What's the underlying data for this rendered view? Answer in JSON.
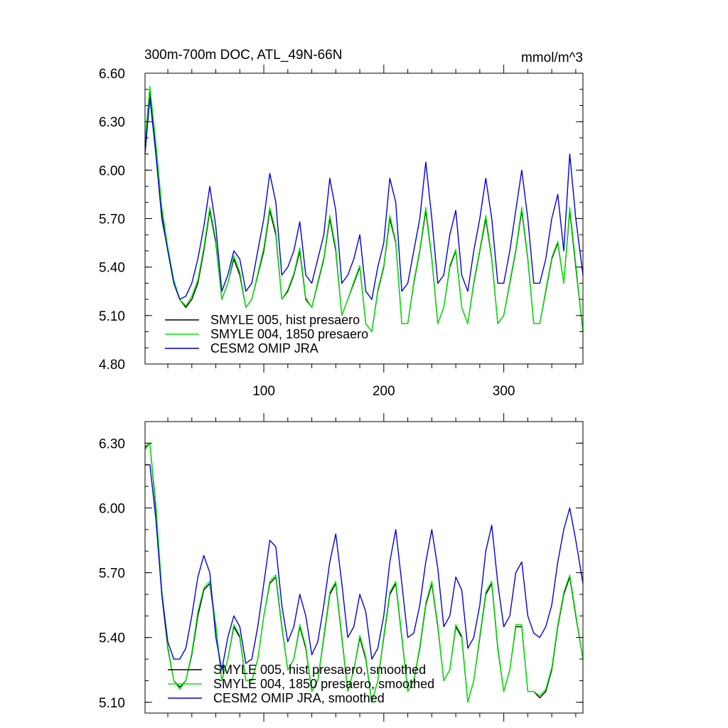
{
  "colors": {
    "hist": "#000000",
    "p1850": "#00ee00",
    "omip": "#0000dd"
  },
  "chart_data": [
    {
      "type": "line",
      "title": "300m-700m DOC, ATL_49N-66N",
      "units": "mmol/m^3",
      "xlim": [
        1,
        366
      ],
      "ylim": [
        4.8,
        6.6
      ],
      "yticks": [
        "6.60",
        "6.30",
        "6.00",
        "5.70",
        "5.40",
        "5.10",
        "4.80"
      ],
      "ytick_values": [
        6.6,
        6.3,
        6.0,
        5.7,
        5.4,
        5.1,
        4.8
      ],
      "xticks": [
        "100",
        "200",
        "300"
      ],
      "xtick_values": [
        100,
        200,
        300
      ],
      "legend_position": "bottom-left",
      "series": [
        {
          "key": "hist",
          "name": "SMYLE 005, hist presaero",
          "x": [
            1,
            5,
            10,
            15,
            20,
            25,
            30,
            35,
            40,
            45,
            50,
            55,
            60,
            65,
            70,
            75,
            80,
            85,
            90,
            95,
            100,
            105,
            110,
            115,
            120,
            125,
            130,
            135,
            140,
            145,
            150,
            155,
            160,
            165,
            170,
            175,
            180,
            185,
            190,
            195,
            200,
            205,
            210,
            215,
            220,
            225,
            230,
            235,
            240,
            245,
            250,
            255,
            260,
            265,
            270,
            275,
            280,
            285,
            290,
            295,
            300,
            305,
            310,
            315,
            320,
            325,
            330,
            335,
            340,
            345,
            350,
            355,
            360,
            366
          ],
          "values": [
            6.15,
            6.5,
            6.15,
            5.75,
            5.5,
            5.3,
            5.2,
            5.15,
            5.2,
            5.3,
            5.5,
            5.75,
            5.55,
            5.2,
            5.3,
            5.45,
            5.35,
            5.15,
            5.2,
            5.35,
            5.5,
            5.75,
            5.6,
            5.2,
            5.25,
            5.35,
            5.5,
            5.2,
            5.15,
            5.3,
            5.45,
            5.7,
            5.5,
            5.1,
            5.2,
            5.3,
            5.4,
            5.05,
            5.0,
            5.25,
            5.4,
            5.7,
            5.55,
            5.05,
            5.05,
            5.3,
            5.5,
            5.75,
            5.45,
            5.05,
            5.15,
            5.4,
            5.5,
            5.15,
            5.05,
            5.3,
            5.5,
            5.7,
            5.45,
            5.05,
            5.1,
            5.3,
            5.5,
            5.75,
            5.45,
            5.05,
            5.05,
            5.25,
            5.45,
            5.55,
            5.3,
            5.75,
            5.4,
            5.0
          ]
        },
        {
          "key": "p1850",
          "name": "SMYLE 004, 1850 presaero",
          "x": [
            1,
            5,
            10,
            15,
            20,
            25,
            30,
            35,
            40,
            45,
            50,
            55,
            60,
            65,
            70,
            75,
            80,
            85,
            90,
            95,
            100,
            105,
            110,
            115,
            120,
            125,
            130,
            135,
            140,
            145,
            150,
            155,
            160,
            165,
            170,
            175,
            180,
            185,
            190,
            195,
            200,
            205,
            210,
            215,
            220,
            225,
            230,
            235,
            240,
            245,
            250,
            255,
            260,
            265,
            270,
            275,
            280,
            285,
            290,
            295,
            300,
            305,
            310,
            315,
            320,
            325,
            330,
            335,
            340,
            345,
            350,
            355,
            360,
            366
          ],
          "values": [
            6.18,
            6.52,
            6.17,
            5.77,
            5.52,
            5.32,
            5.2,
            5.16,
            5.22,
            5.32,
            5.52,
            5.77,
            5.57,
            5.2,
            5.3,
            5.47,
            5.37,
            5.15,
            5.2,
            5.36,
            5.52,
            5.77,
            5.62,
            5.2,
            5.26,
            5.36,
            5.52,
            5.21,
            5.15,
            5.31,
            5.46,
            5.72,
            5.52,
            5.1,
            5.2,
            5.31,
            5.41,
            5.05,
            5.0,
            5.26,
            5.41,
            5.72,
            5.56,
            5.05,
            5.05,
            5.31,
            5.51,
            5.77,
            5.46,
            5.05,
            5.15,
            5.41,
            5.51,
            5.15,
            5.05,
            5.31,
            5.51,
            5.72,
            5.46,
            5.05,
            5.1,
            5.31,
            5.51,
            5.77,
            5.46,
            5.05,
            5.05,
            5.26,
            5.46,
            5.56,
            5.3,
            5.77,
            5.42,
            5.0
          ]
        },
        {
          "key": "omip",
          "name": "CESM2 OMIP JRA",
          "x": [
            1,
            5,
            10,
            15,
            20,
            25,
            30,
            35,
            40,
            45,
            50,
            55,
            60,
            65,
            70,
            75,
            80,
            85,
            90,
            95,
            100,
            105,
            110,
            115,
            120,
            125,
            130,
            135,
            140,
            145,
            150,
            155,
            160,
            165,
            170,
            175,
            180,
            185,
            190,
            195,
            200,
            205,
            210,
            215,
            220,
            225,
            230,
            235,
            240,
            245,
            250,
            255,
            260,
            265,
            270,
            275,
            280,
            285,
            290,
            295,
            300,
            305,
            310,
            315,
            320,
            325,
            330,
            335,
            340,
            345,
            350,
            355,
            360,
            366
          ],
          "values": [
            6.1,
            6.45,
            6.1,
            5.7,
            5.5,
            5.3,
            5.2,
            5.22,
            5.3,
            5.45,
            5.65,
            5.9,
            5.65,
            5.25,
            5.35,
            5.5,
            5.45,
            5.25,
            5.3,
            5.5,
            5.7,
            5.98,
            5.8,
            5.35,
            5.4,
            5.5,
            5.68,
            5.35,
            5.3,
            5.45,
            5.6,
            5.95,
            5.75,
            5.3,
            5.35,
            5.45,
            5.6,
            5.25,
            5.2,
            5.4,
            5.55,
            5.95,
            5.8,
            5.25,
            5.3,
            5.5,
            5.7,
            6.05,
            5.7,
            5.3,
            5.35,
            5.6,
            5.75,
            5.35,
            5.25,
            5.5,
            5.7,
            5.95,
            5.7,
            5.3,
            5.3,
            5.5,
            5.75,
            6.0,
            5.7,
            5.3,
            5.3,
            5.45,
            5.7,
            5.85,
            5.5,
            6.1,
            5.7,
            5.35
          ]
        }
      ]
    },
    {
      "type": "line",
      "xlim": [
        1,
        366
      ],
      "ylim": [
        5.05,
        6.4
      ],
      "yticks": [
        "6.30",
        "6.00",
        "5.70",
        "5.40",
        "5.10"
      ],
      "ytick_values": [
        6.3,
        6.0,
        5.7,
        5.4,
        5.1
      ],
      "xtick_values": [
        100,
        200,
        300
      ],
      "legend_position": "bottom-left",
      "series": [
        {
          "key": "hist",
          "name": "SMYLE 005, hist presaero, smoothed",
          "x": [
            1,
            5,
            10,
            15,
            20,
            25,
            30,
            35,
            40,
            45,
            50,
            55,
            60,
            65,
            70,
            75,
            80,
            85,
            90,
            95,
            100,
            105,
            110,
            115,
            120,
            125,
            130,
            135,
            140,
            145,
            150,
            155,
            160,
            165,
            170,
            175,
            180,
            185,
            190,
            195,
            200,
            205,
            210,
            215,
            220,
            225,
            230,
            235,
            240,
            245,
            250,
            255,
            260,
            265,
            270,
            275,
            280,
            285,
            290,
            295,
            300,
            305,
            310,
            315,
            320,
            325,
            330,
            335,
            340,
            345,
            350,
            355,
            360,
            366
          ],
          "values": [
            6.28,
            6.3,
            6.0,
            5.6,
            5.35,
            5.2,
            5.17,
            5.2,
            5.32,
            5.5,
            5.62,
            5.65,
            5.45,
            5.2,
            5.3,
            5.45,
            5.4,
            5.2,
            5.2,
            5.3,
            5.5,
            5.65,
            5.68,
            5.45,
            5.25,
            5.3,
            5.45,
            5.35,
            5.15,
            5.2,
            5.4,
            5.6,
            5.65,
            5.4,
            5.15,
            5.25,
            5.4,
            5.3,
            5.1,
            5.2,
            5.4,
            5.6,
            5.65,
            5.4,
            5.15,
            5.2,
            5.35,
            5.55,
            5.65,
            5.45,
            5.2,
            5.25,
            5.45,
            5.4,
            5.1,
            5.2,
            5.4,
            5.6,
            5.65,
            5.35,
            5.15,
            5.25,
            5.45,
            5.45,
            5.15,
            5.15,
            5.12,
            5.15,
            5.25,
            5.45,
            5.6,
            5.68,
            5.5,
            5.3
          ]
        },
        {
          "key": "p1850",
          "name": "SMYLE 004, 1850 presaero, smoothed",
          "x": [
            1,
            5,
            10,
            15,
            20,
            25,
            30,
            35,
            40,
            45,
            50,
            55,
            60,
            65,
            70,
            75,
            80,
            85,
            90,
            95,
            100,
            105,
            110,
            115,
            120,
            125,
            130,
            135,
            140,
            145,
            150,
            155,
            160,
            165,
            170,
            175,
            180,
            185,
            190,
            195,
            200,
            205,
            210,
            215,
            220,
            225,
            230,
            235,
            240,
            245,
            250,
            255,
            260,
            265,
            270,
            275,
            280,
            285,
            290,
            295,
            300,
            305,
            310,
            315,
            320,
            325,
            330,
            335,
            340,
            345,
            350,
            355,
            360,
            366
          ],
          "values": [
            6.27,
            6.3,
            6.02,
            5.62,
            5.36,
            5.2,
            5.16,
            5.2,
            5.33,
            5.52,
            5.63,
            5.66,
            5.46,
            5.2,
            5.3,
            5.46,
            5.41,
            5.2,
            5.2,
            5.3,
            5.5,
            5.66,
            5.69,
            5.46,
            5.25,
            5.3,
            5.46,
            5.36,
            5.15,
            5.2,
            5.41,
            5.61,
            5.66,
            5.41,
            5.15,
            5.25,
            5.41,
            5.31,
            5.1,
            5.2,
            5.41,
            5.61,
            5.66,
            5.41,
            5.15,
            5.2,
            5.36,
            5.56,
            5.66,
            5.46,
            5.2,
            5.25,
            5.46,
            5.41,
            5.1,
            5.2,
            5.41,
            5.61,
            5.66,
            5.36,
            5.15,
            5.25,
            5.46,
            5.46,
            5.15,
            5.15,
            5.13,
            5.16,
            5.26,
            5.46,
            5.61,
            5.69,
            5.51,
            5.3
          ]
        },
        {
          "key": "omip",
          "name": "CESM2 OMIP JRA, smoothed",
          "x": [
            1,
            5,
            10,
            15,
            20,
            25,
            30,
            35,
            40,
            45,
            50,
            55,
            60,
            65,
            70,
            75,
            80,
            85,
            90,
            95,
            100,
            105,
            110,
            115,
            120,
            125,
            130,
            135,
            140,
            145,
            150,
            155,
            160,
            165,
            170,
            175,
            180,
            185,
            190,
            195,
            200,
            205,
            210,
            215,
            220,
            225,
            230,
            235,
            240,
            245,
            250,
            255,
            260,
            265,
            270,
            275,
            280,
            285,
            290,
            295,
            300,
            305,
            310,
            315,
            320,
            325,
            330,
            335,
            340,
            345,
            350,
            355,
            360,
            366
          ],
          "values": [
            6.2,
            6.2,
            5.95,
            5.6,
            5.38,
            5.3,
            5.3,
            5.35,
            5.5,
            5.68,
            5.78,
            5.7,
            5.4,
            5.25,
            5.4,
            5.5,
            5.45,
            5.28,
            5.3,
            5.45,
            5.65,
            5.85,
            5.82,
            5.55,
            5.38,
            5.45,
            5.6,
            5.5,
            5.32,
            5.38,
            5.55,
            5.75,
            5.88,
            5.65,
            5.4,
            5.45,
            5.6,
            5.52,
            5.3,
            5.35,
            5.5,
            5.75,
            5.9,
            5.65,
            5.4,
            5.42,
            5.55,
            5.75,
            5.9,
            5.72,
            5.45,
            5.5,
            5.68,
            5.62,
            5.35,
            5.4,
            5.55,
            5.8,
            5.92,
            5.65,
            5.45,
            5.5,
            5.7,
            5.75,
            5.5,
            5.42,
            5.4,
            5.45,
            5.55,
            5.75,
            5.9,
            6.0,
            5.85,
            5.65
          ]
        }
      ]
    }
  ]
}
